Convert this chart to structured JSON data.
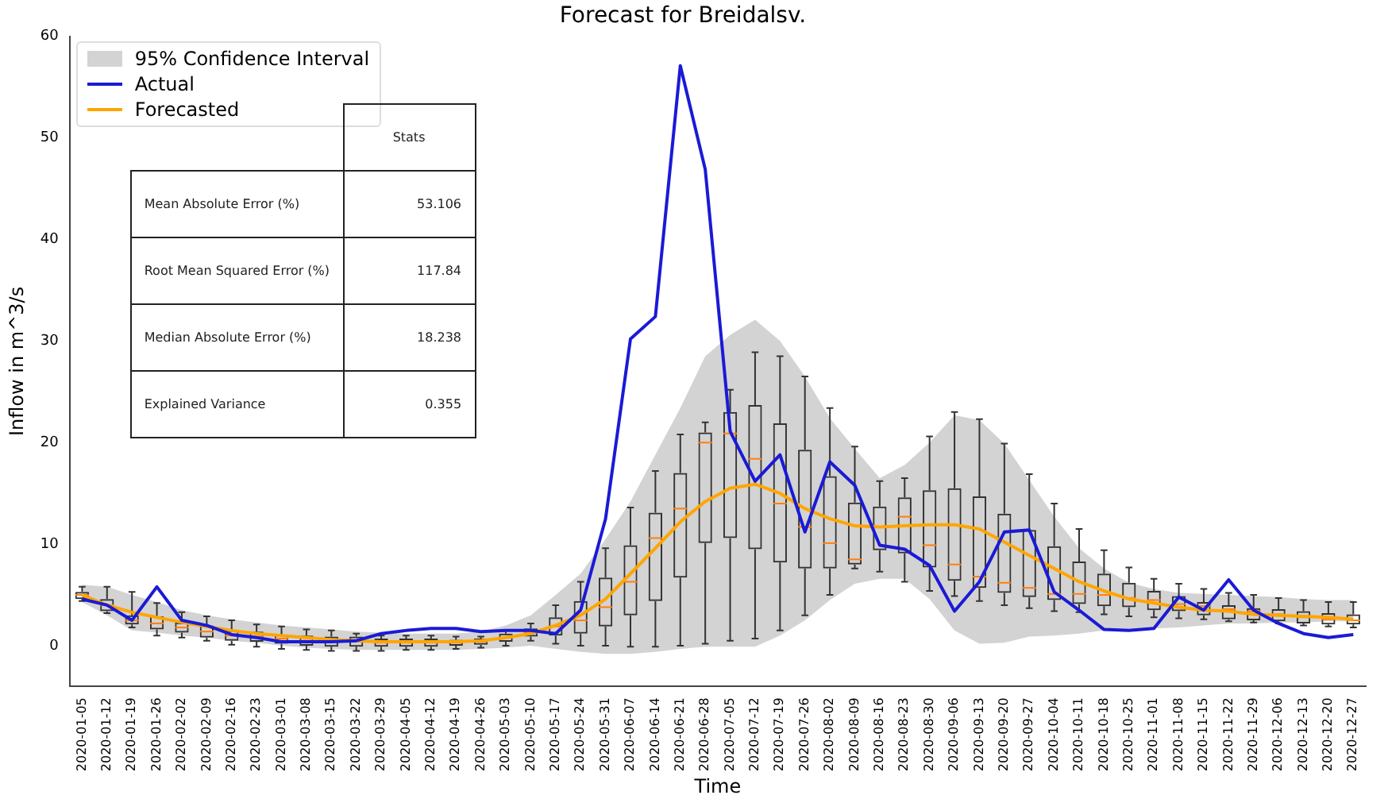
{
  "chart_data": {
    "type": "line",
    "title": "Forecast for Breidalsv.",
    "xlabel": "Time",
    "ylabel": "Inflow in m^3/s",
    "categories": [
      "2020-01-05",
      "2020-01-12",
      "2020-01-19",
      "2020-01-26",
      "2020-02-02",
      "2020-02-09",
      "2020-02-16",
      "2020-02-23",
      "2020-03-01",
      "2020-03-08",
      "2020-03-15",
      "2020-03-22",
      "2020-03-29",
      "2020-04-05",
      "2020-04-12",
      "2020-04-19",
      "2020-04-26",
      "2020-05-03",
      "2020-05-10",
      "2020-05-17",
      "2020-05-24",
      "2020-05-31",
      "2020-06-07",
      "2020-06-14",
      "2020-06-21",
      "2020-06-28",
      "2020-07-05",
      "2020-07-12",
      "2020-07-19",
      "2020-07-26",
      "2020-08-02",
      "2020-08-09",
      "2020-08-16",
      "2020-08-23",
      "2020-08-30",
      "2020-09-06",
      "2020-09-13",
      "2020-09-20",
      "2020-09-27",
      "2020-10-04",
      "2020-10-11",
      "2020-10-18",
      "2020-10-25",
      "2020-11-01",
      "2020-11-08",
      "2020-11-15",
      "2020-11-22",
      "2020-11-29",
      "2020-12-06",
      "2020-12-13",
      "2020-12-20",
      "2020-12-27"
    ],
    "ylim": [
      -4,
      60
    ],
    "yticks": [
      0,
      10,
      20,
      30,
      40,
      50,
      60
    ],
    "grid": false,
    "legend": "top left",
    "series": [
      {
        "name": "95% Confidence Interval",
        "type": "area",
        "color": "#d3d3d3",
        "values": [
          null,
          null,
          null,
          null,
          null,
          null,
          null,
          null,
          null,
          null,
          null,
          null,
          null,
          null,
          null,
          null,
          null,
          null,
          null,
          null,
          null,
          null,
          null,
          null,
          null,
          null,
          null,
          null,
          null,
          null,
          null,
          null,
          null,
          null,
          null,
          null,
          null,
          null,
          null,
          null,
          null,
          null,
          null,
          null,
          null,
          null,
          null,
          null,
          null,
          null,
          null,
          null
        ],
        "lower": [
          4.3,
          3.0,
          1.5,
          1.3,
          1.0,
          0.8,
          0.5,
          0.3,
          0.0,
          -0.2,
          -0.3,
          -0.4,
          -0.4,
          -0.4,
          -0.4,
          -0.4,
          -0.3,
          -0.2,
          0.0,
          -0.3,
          -0.6,
          -0.8,
          -0.8,
          -0.6,
          -0.3,
          -0.1,
          -0.1,
          -0.1,
          1.0,
          2.5,
          4.5,
          6.1,
          6.6,
          6.6,
          4.6,
          1.5,
          0.2,
          0.3,
          0.9,
          1.0,
          1.2,
          1.5,
          1.6,
          1.7,
          1.8,
          2.0,
          2.2,
          2.2,
          2.3,
          2.3,
          2.4,
          2.4
        ],
        "upper": [
          6.0,
          5.8,
          5.0,
          4.3,
          3.5,
          3.0,
          2.6,
          2.3,
          2.0,
          1.8,
          1.6,
          1.4,
          1.3,
          1.2,
          1.2,
          1.2,
          1.4,
          2.0,
          3.0,
          5.0,
          7.1,
          10.5,
          14.2,
          18.8,
          23.4,
          28.5,
          30.6,
          32.1,
          30.0,
          26.5,
          22.4,
          19.4,
          16.5,
          17.8,
          20.0,
          22.7,
          22.2,
          19.9,
          16.3,
          12.7,
          9.6,
          7.6,
          6.2,
          5.6,
          5.2,
          5.1,
          5.0,
          4.9,
          4.8,
          4.6,
          4.5,
          4.5
        ]
      },
      {
        "type": "box",
        "color": "#333333",
        "boxes": [
          {
            "low": 4.4,
            "q1": 4.6,
            "median": 5.0,
            "q3": 5.3,
            "high": 5.8
          },
          {
            "low": 3.2,
            "q1": 3.4,
            "median": 4.0,
            "q3": 4.6,
            "high": 5.8
          },
          {
            "low": 1.8,
            "q1": 2.1,
            "median": 2.5,
            "q3": 3.0,
            "high": 5.3
          },
          {
            "low": 1.0,
            "q1": 1.6,
            "median": 2.2,
            "q3": 2.9,
            "high": 4.2
          },
          {
            "low": 0.8,
            "q1": 1.3,
            "median": 1.8,
            "q3": 2.3,
            "high": 3.3
          },
          {
            "low": 0.5,
            "q1": 0.8,
            "median": 1.4,
            "q3": 2.0,
            "high": 2.9
          },
          {
            "low": 0.1,
            "q1": 0.5,
            "median": 1.0,
            "q3": 1.5,
            "high": 2.5
          },
          {
            "low": -0.1,
            "q1": 0.4,
            "median": 0.9,
            "q3": 1.4,
            "high": 2.1
          },
          {
            "low": -0.3,
            "q1": 0.2,
            "median": 0.7,
            "q3": 1.1,
            "high": 1.9
          },
          {
            "low": -0.4,
            "q1": 0.0,
            "median": 0.5,
            "q3": 1.0,
            "high": 1.6
          },
          {
            "low": -0.5,
            "q1": -0.1,
            "median": 0.4,
            "q3": 0.9,
            "high": 1.5
          },
          {
            "low": -0.5,
            "q1": -0.1,
            "median": 0.4,
            "q3": 0.9,
            "high": 1.2
          },
          {
            "low": -0.5,
            "q1": -0.1,
            "median": 0.3,
            "q3": 0.7,
            "high": 1.0
          },
          {
            "low": -0.4,
            "q1": -0.1,
            "median": 0.3,
            "q3": 0.7,
            "high": 1.0
          },
          {
            "low": -0.4,
            "q1": -0.1,
            "median": 0.3,
            "q3": 0.7,
            "high": 1.0
          },
          {
            "low": -0.3,
            "q1": 0.0,
            "median": 0.3,
            "q3": 0.6,
            "high": 0.9
          },
          {
            "low": -0.2,
            "q1": 0.1,
            "median": 0.4,
            "q3": 0.7,
            "high": 0.9
          },
          {
            "low": 0.0,
            "q1": 0.4,
            "median": 0.8,
            "q3": 1.2,
            "high": 1.5
          },
          {
            "low": 0.5,
            "q1": 0.9,
            "median": 1.3,
            "q3": 1.7,
            "high": 2.2
          },
          {
            "low": 0.2,
            "q1": 1.0,
            "median": 1.9,
            "q3": 2.8,
            "high": 4.0
          },
          {
            "low": 0.0,
            "q1": 1.2,
            "median": 2.5,
            "q3": 4.4,
            "high": 6.3
          },
          {
            "low": 0.0,
            "q1": 1.9,
            "median": 3.8,
            "q3": 6.7,
            "high": 9.6
          },
          {
            "low": -0.1,
            "q1": 3.0,
            "median": 6.3,
            "q3": 9.9,
            "high": 13.6
          },
          {
            "low": -0.1,
            "q1": 4.4,
            "median": 10.6,
            "q3": 13.1,
            "high": 17.2
          },
          {
            "low": 0.0,
            "q1": 6.7,
            "median": 13.5,
            "q3": 17.0,
            "high": 20.8
          },
          {
            "low": 0.2,
            "q1": 10.1,
            "median": 20.0,
            "q3": 21.0,
            "high": 22.0
          },
          {
            "low": 0.5,
            "q1": 10.6,
            "median": 20.9,
            "q3": 23.0,
            "high": 25.2
          },
          {
            "low": 0.7,
            "q1": 9.5,
            "median": 18.4,
            "q3": 23.7,
            "high": 28.9
          },
          {
            "low": 1.5,
            "q1": 8.2,
            "median": 14.0,
            "q3": 21.9,
            "high": 28.5
          },
          {
            "low": 3.0,
            "q1": 7.6,
            "median": 11.7,
            "q3": 19.3,
            "high": 26.5
          },
          {
            "low": 5.0,
            "q1": 7.6,
            "median": 10.1,
            "q3": 16.7,
            "high": 23.4
          },
          {
            "low": 7.6,
            "q1": 8.0,
            "median": 8.5,
            "q3": 14.1,
            "high": 19.6
          },
          {
            "low": 7.3,
            "q1": 9.4,
            "median": 11.7,
            "q3": 13.7,
            "high": 16.2
          },
          {
            "low": 6.3,
            "q1": 9.1,
            "median": 12.7,
            "q3": 14.6,
            "high": 16.5
          },
          {
            "low": 5.4,
            "q1": 7.7,
            "median": 9.9,
            "q3": 15.3,
            "high": 20.6
          },
          {
            "low": 4.9,
            "q1": 6.4,
            "median": 8.0,
            "q3": 15.5,
            "high": 23.0
          },
          {
            "low": 4.4,
            "q1": 5.7,
            "median": 6.8,
            "q3": 14.7,
            "high": 22.3
          },
          {
            "low": 4.0,
            "q1": 5.2,
            "median": 6.2,
            "q3": 13.0,
            "high": 19.9
          },
          {
            "low": 3.7,
            "q1": 4.8,
            "median": 5.7,
            "q3": 11.4,
            "high": 16.9
          },
          {
            "low": 3.4,
            "q1": 4.5,
            "median": 5.1,
            "q3": 9.8,
            "high": 14.0
          },
          {
            "low": 3.3,
            "q1": 4.1,
            "median": 5.1,
            "q3": 8.3,
            "high": 11.5
          },
          {
            "low": 3.1,
            "q1": 3.9,
            "median": 5.0,
            "q3": 7.1,
            "high": 9.4
          },
          {
            "low": 2.9,
            "q1": 3.8,
            "median": 4.7,
            "q3": 6.2,
            "high": 7.7
          },
          {
            "low": 2.8,
            "q1": 3.5,
            "median": 4.5,
            "q3": 5.4,
            "high": 6.6
          },
          {
            "low": 2.7,
            "q1": 3.4,
            "median": 4.1,
            "q3": 4.9,
            "high": 6.1
          },
          {
            "low": 2.6,
            "q1": 3.0,
            "median": 3.9,
            "q3": 4.3,
            "high": 5.6
          },
          {
            "low": 2.4,
            "q1": 2.6,
            "median": 3.6,
            "q3": 4.0,
            "high": 5.2
          },
          {
            "low": 2.3,
            "q1": 2.5,
            "median": 3.4,
            "q3": 3.7,
            "high": 5.0
          },
          {
            "low": 2.2,
            "q1": 2.4,
            "median": 3.1,
            "q3": 3.6,
            "high": 4.7
          },
          {
            "low": 2.0,
            "q1": 2.2,
            "median": 2.8,
            "q3": 3.4,
            "high": 4.5
          },
          {
            "low": 1.9,
            "q1": 2.1,
            "median": 2.6,
            "q3": 3.2,
            "high": 4.3
          },
          {
            "low": 1.8,
            "q1": 2.1,
            "median": 2.5,
            "q3": 3.1,
            "high": 4.3
          }
        ]
      },
      {
        "name": "Actual",
        "color": "#1a1ad6",
        "values": [
          4.6,
          4.0,
          2.5,
          5.8,
          2.5,
          2.0,
          1.1,
          0.8,
          0.4,
          0.4,
          0.4,
          0.5,
          1.2,
          1.5,
          1.7,
          1.7,
          1.4,
          1.5,
          1.5,
          1.2,
          3.5,
          12.5,
          30.2,
          32.4,
          57.1,
          46.9,
          21.1,
          16.2,
          18.8,
          11.2,
          18.1,
          15.8,
          9.9,
          9.5,
          7.9,
          3.4,
          6.3,
          11.2,
          11.4,
          5.3,
          3.5,
          1.6,
          1.5,
          1.7,
          4.8,
          3.5,
          6.5,
          3.5,
          2.2,
          1.2,
          0.8,
          1.1
        ]
      },
      {
        "name": "Forecasted",
        "color": "#ffa500",
        "values": [
          5.0,
          4.0,
          3.3,
          2.8,
          2.3,
          1.9,
          1.5,
          1.2,
          1.0,
          0.8,
          0.6,
          0.5,
          0.4,
          0.4,
          0.4,
          0.4,
          0.5,
          0.8,
          1.2,
          2.0,
          3.0,
          4.6,
          7.1,
          9.6,
          12.2,
          14.2,
          15.5,
          15.9,
          15.0,
          13.5,
          12.5,
          11.8,
          11.7,
          11.8,
          11.9,
          11.9,
          11.5,
          10.2,
          8.9,
          7.6,
          6.3,
          5.4,
          4.6,
          4.2,
          3.8,
          3.5,
          3.4,
          3.1,
          3.0,
          2.9,
          2.8,
          2.6
        ]
      }
    ],
    "annotations": [
      "Stats",
      "Mean Absolute Error (%)",
      "53.106",
      "Root Mean Squared Error (%)",
      "117.84",
      "Median Absolute Error (%)",
      "18.238",
      "Explained Variance",
      "0.355"
    ]
  }
}
